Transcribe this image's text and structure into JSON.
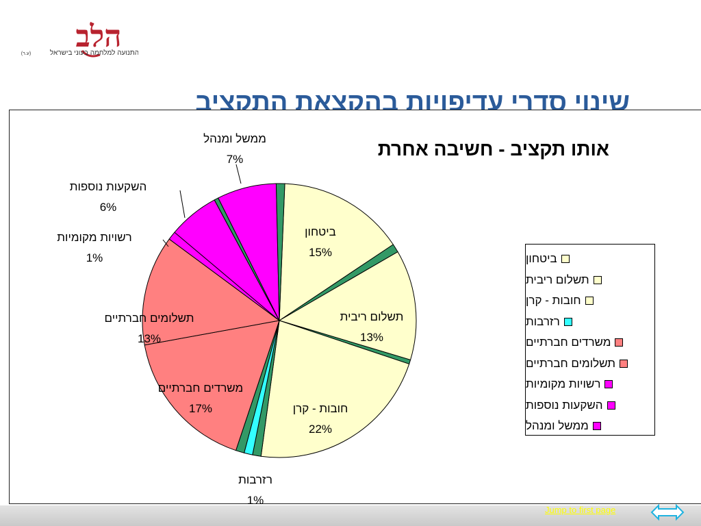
{
  "logo": {
    "brand": "הלב",
    "tagline": "התנועה למלחמה בעוני בישראל",
    "suffix": "(ע.ר)"
  },
  "slide": {
    "title": "שינוי סדרי עדיפויות בהקצאת התקציב"
  },
  "chart_data": {
    "type": "pie",
    "title": "אותו תקציב - חשיבה אחרת",
    "legend_position": "right",
    "slices": [
      {
        "label": "ביטחון",
        "value": 15,
        "display": "15%",
        "color": "#ffffcc"
      },
      {
        "label": "",
        "value": 1,
        "display": "",
        "color": "#339966"
      },
      {
        "label": "תשלום ריבית",
        "value": 13,
        "display": "13%",
        "color": "#ffffcc"
      },
      {
        "label": "",
        "value": 0.5,
        "display": "",
        "color": "#339966"
      },
      {
        "label": "חובות - קרן",
        "value": 22,
        "display": "22%",
        "color": "#ffffcc"
      },
      {
        "label": "",
        "value": 1,
        "display": "",
        "color": "#339966"
      },
      {
        "label": "רזרבות",
        "value": 1,
        "display": "1%",
        "color": "#33ffff"
      },
      {
        "label": "",
        "value": 1,
        "display": "",
        "color": "#339966"
      },
      {
        "label": "משרדים חברתיים",
        "value": 17,
        "display": "17%",
        "color": "#ff8080"
      },
      {
        "label": "תשלומים חברתיים",
        "value": 13,
        "display": "13%",
        "color": "#ff8080"
      },
      {
        "label": "רשויות מקומיות",
        "value": 1,
        "display": "1%",
        "color": "#ff00ff"
      },
      {
        "label": "השקעות נוספות",
        "value": 6,
        "display": "6%",
        "color": "#ff00ff"
      },
      {
        "label": "",
        "value": 0.5,
        "display": "",
        "color": "#339966"
      },
      {
        "label": "ממשל ומנהל",
        "value": 7,
        "display": "7%",
        "color": "#ff00ff"
      },
      {
        "label": "",
        "value": 1,
        "display": "",
        "color": "#339966"
      }
    ],
    "legend": [
      {
        "label": "ביטחון",
        "color": "#ffffcc"
      },
      {
        "label": "תשלום ריבית",
        "color": "#ffffcc"
      },
      {
        "label": "חובות - קרן",
        "color": "#ffffcc"
      },
      {
        "label": "רזרבות",
        "color": "#33ffff"
      },
      {
        "label": "משרדים חברתיים",
        "color": "#ff8080"
      },
      {
        "label": "תשלומים חברתיים",
        "color": "#ff8080"
      },
      {
        "label": "רשויות מקומיות",
        "color": "#ff00ff"
      },
      {
        "label": "השקעות נוספות",
        "color": "#ff00ff"
      },
      {
        "label": "ממשל ומנהל",
        "color": "#ff00ff"
      }
    ]
  },
  "footer": {
    "jump_link": "Jump to first page"
  },
  "colors": {
    "title": "#2b5b9a",
    "link": "#ffff00",
    "nav_button": "#1fb3e0"
  }
}
